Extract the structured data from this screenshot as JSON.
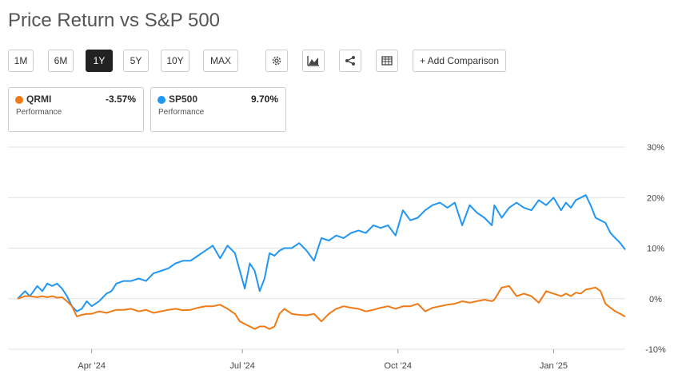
{
  "title": "Price Return vs S&P 500",
  "toolbar": {
    "ranges": [
      "1M",
      "6M",
      "1Y",
      "5Y",
      "10Y",
      "MAX"
    ],
    "active_range": "1Y",
    "icons": [
      "gear-icon",
      "chart-type-icon",
      "share-icon",
      "table-icon"
    ],
    "add_comparison": "+ Add Comparison"
  },
  "legend": [
    {
      "name": "QRMI",
      "value": "-3.57%",
      "sub": "Performance",
      "color": "#f07a16"
    },
    {
      "name": "SP500",
      "value": "9.70%",
      "sub": "Performance",
      "color": "#2196f3"
    }
  ],
  "chart_data": {
    "type": "line",
    "title": "Price Return vs S&P 500",
    "ylabel": "",
    "xlabel": "",
    "ylim": [
      -10,
      30
    ],
    "yticks": [
      30,
      20,
      10,
      0,
      -10
    ],
    "ytick_labels": [
      "30%",
      "20%",
      "10%",
      "0%",
      "-10%"
    ],
    "xlim": [
      0,
      246
    ],
    "xticks": [
      30,
      91,
      154,
      217
    ],
    "xtick_labels": [
      "Apr '24",
      "Jul '24",
      "Oct '24",
      "Jan '25"
    ],
    "series": [
      {
        "name": "SP500",
        "color": "#2196f3",
        "x": [
          0,
          3,
          5,
          8,
          10,
          12,
          14,
          16,
          18,
          20,
          22,
          24,
          26,
          28,
          30,
          33,
          36,
          38,
          40,
          43,
          46,
          49,
          52,
          55,
          58,
          61,
          64,
          67,
          70,
          73,
          76,
          79,
          82,
          85,
          88,
          90,
          92,
          94,
          96,
          98,
          100,
          102,
          104,
          106,
          108,
          111,
          114,
          117,
          120,
          123,
          126,
          129,
          132,
          135,
          138,
          141,
          144,
          147,
          150,
          153,
          156,
          159,
          162,
          165,
          168,
          171,
          174,
          177,
          180,
          183,
          186,
          189,
          192,
          193,
          196,
          199,
          202,
          205,
          208,
          211,
          214,
          217,
          220,
          222,
          224,
          226,
          228,
          230,
          232,
          234,
          236,
          238,
          240,
          242,
          244,
          246
        ],
        "values": [
          0,
          1.5,
          0.5,
          2.5,
          1.5,
          3,
          2.5,
          3,
          2,
          0.5,
          -1.5,
          -2.5,
          -2,
          -0.5,
          -1.5,
          -0.5,
          1,
          1.5,
          3,
          3.5,
          3.5,
          4,
          3.5,
          5,
          5.5,
          6,
          7,
          7.5,
          7.5,
          8.5,
          9.5,
          10.5,
          8,
          10.5,
          9,
          5.5,
          2,
          7,
          5.5,
          1.5,
          4,
          9,
          8.5,
          9.5,
          10,
          10,
          11,
          9.5,
          7.5,
          12,
          11.5,
          12.5,
          12,
          13,
          13.5,
          13,
          14.5,
          14,
          14.5,
          12.5,
          17.5,
          15.5,
          16,
          17.5,
          18.5,
          19,
          18,
          19,
          14.5,
          18.5,
          17,
          16,
          14.5,
          18.5,
          16,
          18,
          19,
          18,
          17.5,
          19.5,
          18.5,
          20,
          17.5,
          19,
          18,
          19.5,
          20,
          20.5,
          18.5,
          16,
          15.5,
          15,
          13,
          12,
          11,
          9.7
        ]
      },
      {
        "name": "QRMI",
        "color": "#f07a16",
        "x": [
          0,
          3,
          5,
          8,
          10,
          12,
          14,
          16,
          18,
          20,
          22,
          24,
          26,
          28,
          30,
          33,
          36,
          38,
          40,
          43,
          46,
          49,
          52,
          55,
          58,
          61,
          64,
          67,
          70,
          73,
          76,
          79,
          82,
          85,
          88,
          90,
          92,
          94,
          96,
          98,
          100,
          102,
          104,
          106,
          108,
          111,
          114,
          117,
          120,
          123,
          126,
          129,
          132,
          135,
          138,
          141,
          144,
          147,
          150,
          153,
          156,
          159,
          162,
          165,
          168,
          171,
          174,
          177,
          180,
          183,
          186,
          189,
          192,
          193,
          196,
          199,
          202,
          205,
          208,
          211,
          214,
          217,
          220,
          222,
          224,
          226,
          228,
          230,
          232,
          234,
          236,
          238,
          240,
          242,
          244,
          246
        ],
        "values": [
          0,
          0.5,
          0.5,
          0.3,
          0.5,
          0.3,
          0.5,
          0.2,
          0.3,
          -0.5,
          -1.5,
          -3.5,
          -3.2,
          -3,
          -3,
          -2.5,
          -2.8,
          -2.5,
          -2.2,
          -2.2,
          -2,
          -2.5,
          -2.2,
          -2.8,
          -2.5,
          -2.2,
          -2,
          -2.3,
          -2.2,
          -1.8,
          -1.5,
          -1.5,
          -1.2,
          -2,
          -3,
          -4.5,
          -5,
          -5.5,
          -6,
          -5.5,
          -5.5,
          -6,
          -5.5,
          -3,
          -2,
          -3,
          -3.2,
          -3.3,
          -3,
          -4.5,
          -3,
          -2,
          -1.5,
          -1.8,
          -2,
          -2.5,
          -2.2,
          -1.8,
          -1.5,
          -2,
          -1.5,
          -1.5,
          -1,
          -2.5,
          -1.8,
          -1.5,
          -1.2,
          -1,
          -0.5,
          -0.8,
          -0.5,
          -0.2,
          -0.5,
          -0.2,
          2.2,
          2.5,
          0.5,
          1,
          0.5,
          -0.8,
          1.5,
          1,
          0.5,
          1,
          0.5,
          1.2,
          1,
          1.8,
          2,
          2.2,
          1.5,
          -1,
          -1.8,
          -2.5,
          -3,
          -3.57
        ]
      }
    ]
  }
}
